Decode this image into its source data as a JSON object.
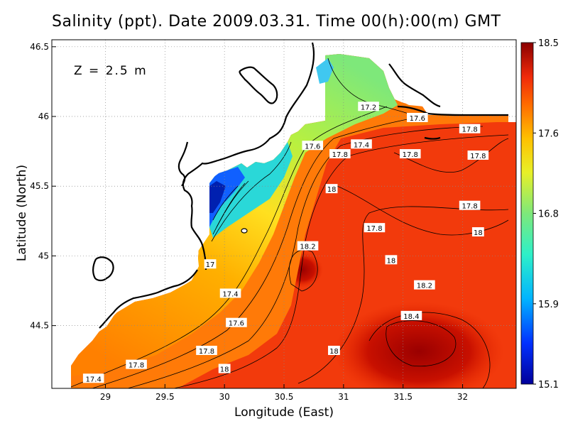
{
  "title": "Salinity (ppt). Date 2009.03.31. Time 00(h):00(m) GMT",
  "depth_label": "Z = 2.5 m",
  "axes": {
    "xlabel": "Longitude (East)",
    "ylabel": "Latitude (North)",
    "xlim": [
      28.55,
      32.45
    ],
    "ylim": [
      44.05,
      46.55
    ],
    "xticks": [
      "29",
      "29.5",
      "30",
      "30.5",
      "31",
      "31.5",
      "32"
    ],
    "yticks": [
      "44.5",
      "45",
      "45.5",
      "46",
      "46.5"
    ],
    "grid": true
  },
  "colorbar": {
    "labels": [
      "18.5",
      "17.6",
      "16.8",
      "15.9",
      "15.1"
    ],
    "min": 15.1,
    "max": 18.5
  },
  "contour_labels": [
    {
      "text": "17.2",
      "lon": 31.21,
      "lat": 46.07
    },
    {
      "text": "17.6",
      "lon": 31.62,
      "lat": 45.99
    },
    {
      "text": "17.8",
      "lon": 32.06,
      "lat": 45.91
    },
    {
      "text": "17.6",
      "lon": 30.74,
      "lat": 45.79
    },
    {
      "text": "17.4",
      "lon": 31.15,
      "lat": 45.8
    },
    {
      "text": "17.8",
      "lon": 30.97,
      "lat": 45.73
    },
    {
      "text": "17.8",
      "lon": 31.56,
      "lat": 45.73
    },
    {
      "text": "17.8",
      "lon": 32.13,
      "lat": 45.72
    },
    {
      "text": "18",
      "lon": 30.9,
      "lat": 45.48
    },
    {
      "text": "17.8",
      "lon": 32.06,
      "lat": 45.36
    },
    {
      "text": "17.8",
      "lon": 31.26,
      "lat": 45.2
    },
    {
      "text": "18",
      "lon": 32.13,
      "lat": 45.17
    },
    {
      "text": "18.2",
      "lon": 30.7,
      "lat": 45.07
    },
    {
      "text": "17",
      "lon": 29.88,
      "lat": 44.94
    },
    {
      "text": "18",
      "lon": 31.4,
      "lat": 44.97
    },
    {
      "text": "18.2",
      "lon": 31.68,
      "lat": 44.79
    },
    {
      "text": "17.4",
      "lon": 30.05,
      "lat": 44.73
    },
    {
      "text": "18.4",
      "lon": 31.57,
      "lat": 44.57
    },
    {
      "text": "17.6",
      "lon": 30.1,
      "lat": 44.52
    },
    {
      "text": "17.8",
      "lon": 29.85,
      "lat": 44.32
    },
    {
      "text": "18",
      "lon": 30.92,
      "lat": 44.32
    },
    {
      "text": "17.8",
      "lon": 29.26,
      "lat": 44.22
    },
    {
      "text": "18",
      "lon": 30,
      "lat": 44.19
    },
    {
      "text": "17.4",
      "lon": 28.9,
      "lat": 44.12
    }
  ]
}
